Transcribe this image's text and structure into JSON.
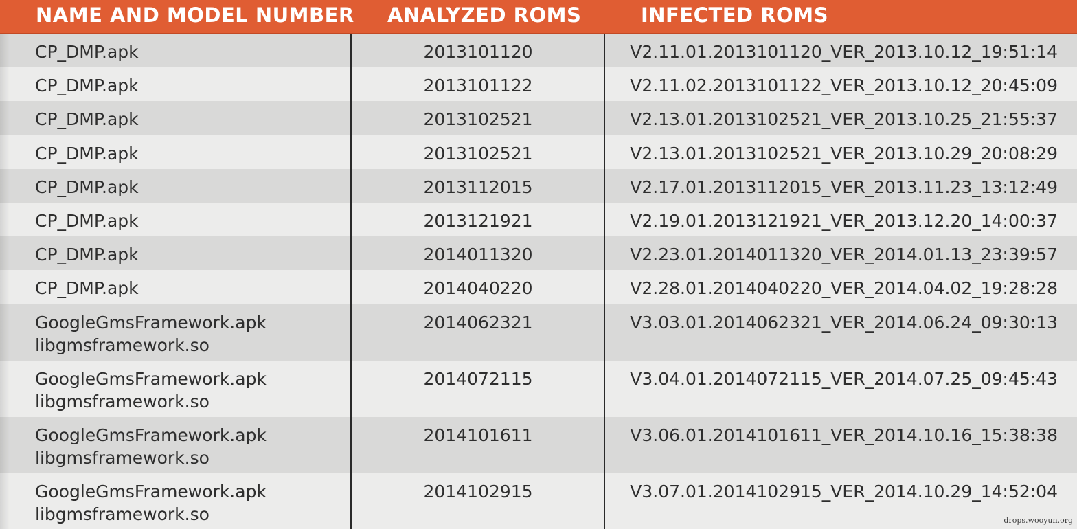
{
  "table": {
    "headers": [
      "NAME AND MODEL NUMBER",
      "ANALYZED ROMS",
      "INFECTED ROMS"
    ],
    "rows": [
      {
        "name": [
          "CP_DMP.apk"
        ],
        "analyzed": "2013101120",
        "infected": "V2.11.01.2013101120_VER_2013.10.12_19:51:14"
      },
      {
        "name": [
          "CP_DMP.apk"
        ],
        "analyzed": "2013101122",
        "infected": "V2.11.02.2013101122_VER_2013.10.12_20:45:09"
      },
      {
        "name": [
          "CP_DMP.apk"
        ],
        "analyzed": "2013102521",
        "infected": "V2.13.01.2013102521_VER_2013.10.25_21:55:37"
      },
      {
        "name": [
          "CP_DMP.apk"
        ],
        "analyzed": "2013102521",
        "infected": "V2.13.01.2013102521_VER_2013.10.29_20:08:29"
      },
      {
        "name": [
          "CP_DMP.apk"
        ],
        "analyzed": "2013112015",
        "infected": "V2.17.01.2013112015_VER_2013.11.23_13:12:49"
      },
      {
        "name": [
          "CP_DMP.apk"
        ],
        "analyzed": "2013121921",
        "infected": "V2.19.01.2013121921_VER_2013.12.20_14:00:37"
      },
      {
        "name": [
          "CP_DMP.apk"
        ],
        "analyzed": "2014011320",
        "infected": "V2.23.01.2014011320_VER_2014.01.13_23:39:57"
      },
      {
        "name": [
          "CP_DMP.apk"
        ],
        "analyzed": "2014040220",
        "infected": "V2.28.01.2014040220_VER_2014.04.02_19:28:28"
      },
      {
        "name": [
          "GoogleGmsFramework.apk",
          "libgmsframework.so"
        ],
        "analyzed": "2014062321",
        "infected": "V3.03.01.2014062321_VER_2014.06.24_09:30:13"
      },
      {
        "name": [
          "GoogleGmsFramework.apk",
          "libgmsframework.so"
        ],
        "analyzed": "2014072115",
        "infected": "V3.04.01.2014072115_VER_2014.07.25_09:45:43"
      },
      {
        "name": [
          "GoogleGmsFramework.apk",
          "libgmsframework.so"
        ],
        "analyzed": "2014101611",
        "infected": "V3.06.01.2014101611_VER_2014.10.16_15:38:38"
      },
      {
        "name": [
          "GoogleGmsFramework.apk",
          "libgmsframework.so"
        ],
        "analyzed": "2014102915",
        "infected": "V3.07.01.2014102915_VER_2014.10.29_14:52:04"
      }
    ]
  },
  "watermark": "drops.wooyun.org",
  "colors": {
    "header_bg": "#e05d33",
    "header_text": "#ffffff",
    "row_dark": "#d9d9d8",
    "row_light": "#ececeb"
  }
}
